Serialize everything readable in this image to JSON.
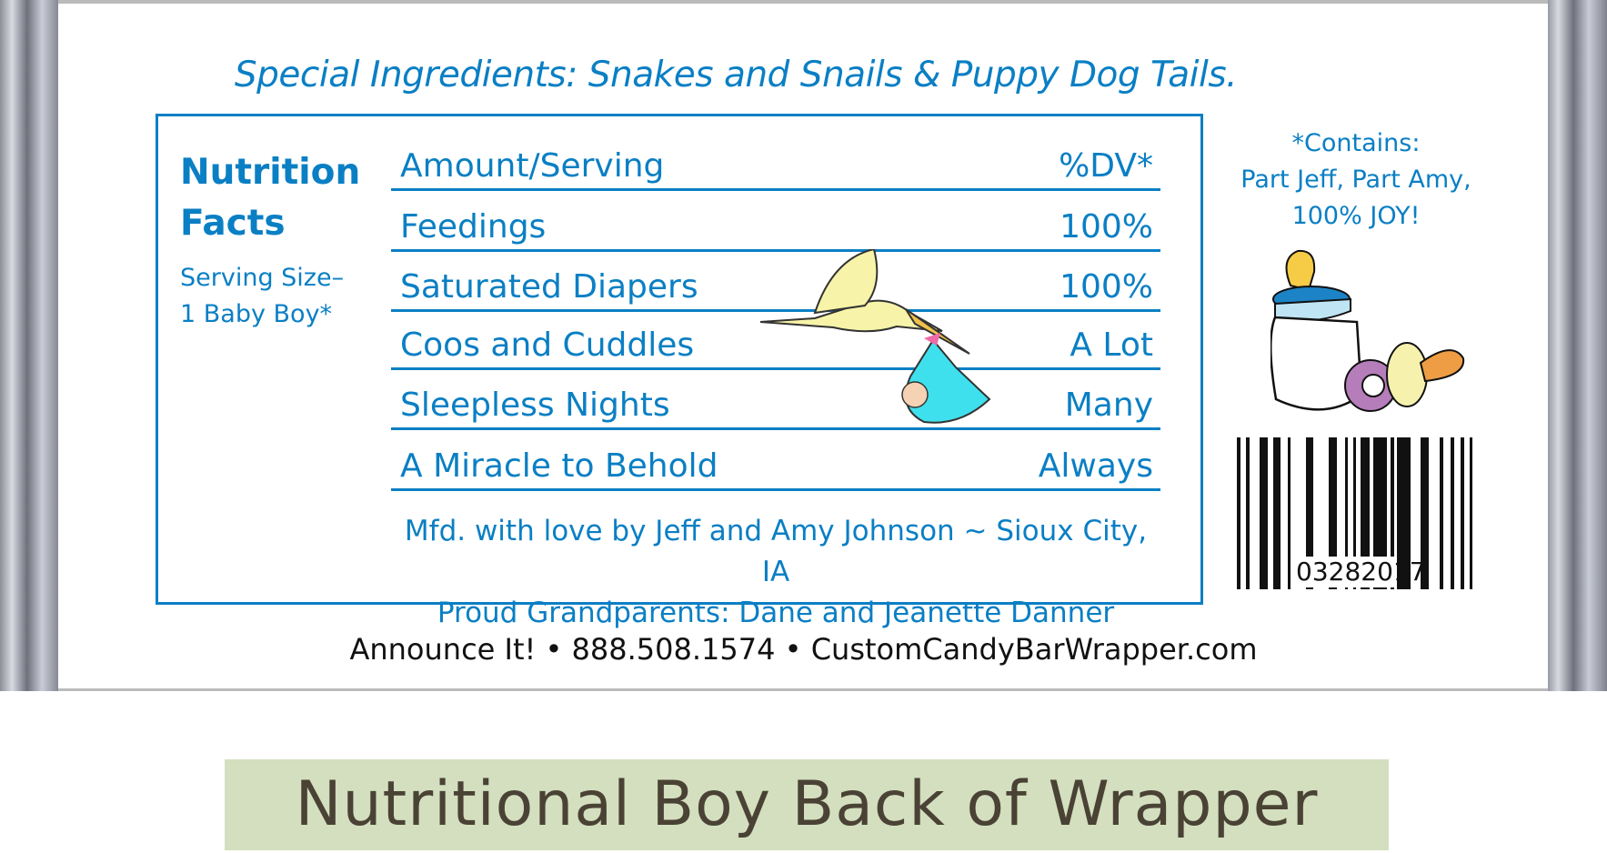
{
  "heading": "Special Ingredients: Snakes and Snails & Puppy Dog Tails.",
  "nutrition": {
    "title_line1": "Nutrition",
    "title_line2": "Facts",
    "serving_line1": "Serving Size–",
    "serving_line2": "1 Baby Boy*"
  },
  "rows": [
    {
      "label": "Amount/Serving",
      "value": "%DV*"
    },
    {
      "label": "Feedings",
      "value": "100%"
    },
    {
      "label": "Saturated Diapers",
      "value": "100%"
    },
    {
      "label": "Coos and Cuddles",
      "value": "A Lot"
    },
    {
      "label": "Sleepless Nights",
      "value": "Many"
    },
    {
      "label": "A Miracle to Behold",
      "value": "Always"
    }
  ],
  "mfd_line1": "Mfd. with love by Jeff and Amy Johnson ~ Sioux City, IA",
  "mfd_line2": "Proud Grandparents: Dane and Jeanette Danner",
  "contains": {
    "line1": "*Contains:",
    "line2": "Part Jeff, Part Amy,",
    "line3": "100% JOY!"
  },
  "barcode_number": "03282017",
  "footer": {
    "brand": "Announce It!",
    "sep1": "•",
    "phone": "888.508.1574",
    "sep2": "•",
    "site": "CustomCandyBarWrapper.com"
  },
  "banner": "Nutritional Boy Back of Wrapper",
  "colors": {
    "text_blue": "#0a7fc4",
    "banner_bg": "#d3dfbe",
    "banner_text": "#4a4235"
  },
  "icons": [
    "stork-with-baby-icon",
    "baby-bottle-icon",
    "pacifier-icon",
    "barcode-icon"
  ]
}
